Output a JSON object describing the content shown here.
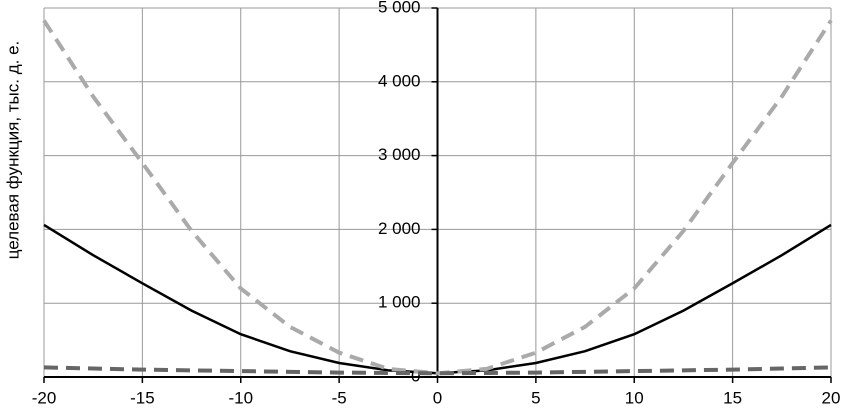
{
  "chart_data": {
    "type": "line",
    "y_label": "целевая функция, тыс. д. е.",
    "x": [
      -20,
      -17.5,
      -15,
      -12.5,
      -10,
      -7.5,
      -5,
      -2.5,
      0,
      2.5,
      5,
      7.5,
      10,
      12.5,
      15,
      17.5,
      20
    ],
    "series": [
      {
        "color": "#000000",
        "dash": false,
        "values": [
          2060,
          1650,
          1270,
          900,
          580,
          350,
          190,
          90,
          50,
          90,
          190,
          350,
          580,
          900,
          1270,
          1650,
          2060
        ]
      },
      {
        "color": "#aaaaaa",
        "dash": true,
        "values": [
          4830,
          3800,
          2900,
          1980,
          1200,
          680,
          330,
          110,
          50,
          110,
          330,
          680,
          1200,
          1980,
          2900,
          3800,
          4830
        ]
      },
      {
        "color": "#666666",
        "dash": true,
        "values": [
          130,
          115,
          100,
          90,
          80,
          70,
          60,
          55,
          50,
          55,
          60,
          70,
          80,
          90,
          100,
          115,
          130
        ]
      }
    ],
    "xlim": [
      -20,
      20
    ],
    "xticks": [
      -20,
      -15,
      -10,
      -5,
      0,
      5,
      10,
      15,
      20
    ],
    "ylim": [
      0,
      5000
    ],
    "yticks": [
      0,
      {
        "value": 1000,
        "label": "1 000"
      },
      {
        "value": 2000,
        "label": "2 000"
      },
      {
        "value": 3000,
        "label": "3 000"
      },
      {
        "value": 4000,
        "label": "4 000"
      },
      {
        "value": 5000,
        "label": "5 000"
      }
    ],
    "grid": true
  }
}
